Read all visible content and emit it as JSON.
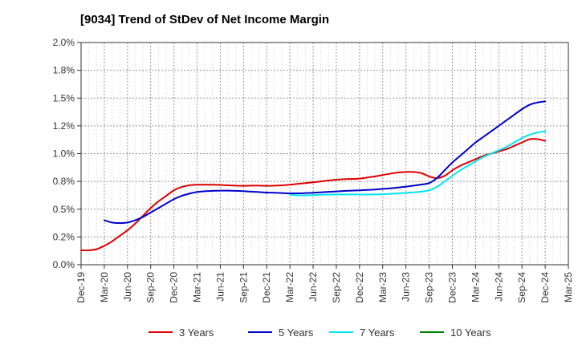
{
  "chart_data": {
    "type": "line",
    "title": "[9034]  Trend of StDev of Net Income Margin",
    "xlabel": "",
    "ylabel": "",
    "x_ticks": [
      "Dec-19",
      "Mar-20",
      "Jun-20",
      "Sep-20",
      "Dec-20",
      "Mar-21",
      "Jun-21",
      "Sep-21",
      "Dec-21",
      "Mar-22",
      "Jun-22",
      "Sep-22",
      "Dec-22",
      "Mar-23",
      "Jun-23",
      "Sep-23",
      "Dec-23",
      "Mar-24",
      "Jun-24",
      "Sep-24",
      "Dec-24",
      "Mar-25"
    ],
    "y_ticks": [
      "0.0%",
      "0.2%",
      "0.5%",
      "0.8%",
      "1.0%",
      "1.2%",
      "1.5%",
      "1.8%",
      "2.0%"
    ],
    "ylim": [
      0,
      2.0
    ],
    "grid": true,
    "legend_position": "bottom",
    "series": [
      {
        "name": "3 Years",
        "color": "#dd0000",
        "x": [
          "Dec-19",
          "Jan-20",
          "Feb-20",
          "Mar-20",
          "Apr-20",
          "May-20",
          "Jun-20",
          "Jul-20",
          "Aug-20",
          "Sep-20",
          "Oct-20",
          "Nov-20",
          "Dec-20",
          "Jan-21",
          "Feb-21",
          "Mar-21",
          "Apr-21",
          "May-21",
          "Jun-21",
          "Jul-21",
          "Aug-21",
          "Sep-21",
          "Oct-21",
          "Nov-21",
          "Dec-21",
          "Jan-22",
          "Feb-22",
          "Mar-22",
          "Apr-22",
          "May-22",
          "Jun-22",
          "Jul-22",
          "Aug-22",
          "Sep-22",
          "Oct-22",
          "Nov-22",
          "Dec-22",
          "Jan-23",
          "Feb-23",
          "Mar-23",
          "Apr-23",
          "May-23",
          "Jun-23",
          "Jul-23",
          "Aug-23",
          "Sep-23",
          "Oct-23",
          "Nov-23",
          "Dec-23",
          "Jan-24",
          "Feb-24",
          "Mar-24",
          "Apr-24",
          "May-24",
          "Jun-24",
          "Jul-24",
          "Aug-24",
          "Sep-24",
          "Oct-24",
          "Nov-24",
          "Dec-24"
        ],
        "values": [
          0.13,
          0.13,
          0.14,
          0.17,
          0.21,
          0.26,
          0.31,
          0.37,
          0.44,
          0.51,
          0.57,
          0.62,
          0.67,
          0.7,
          0.715,
          0.72,
          0.72,
          0.72,
          0.718,
          0.715,
          0.712,
          0.71,
          0.712,
          0.712,
          0.71,
          0.712,
          0.715,
          0.72,
          0.728,
          0.735,
          0.742,
          0.75,
          0.758,
          0.765,
          0.77,
          0.772,
          0.775,
          0.785,
          0.795,
          0.808,
          0.82,
          0.83,
          0.835,
          0.835,
          0.825,
          0.795,
          0.78,
          0.8,
          0.85,
          0.89,
          0.92,
          0.95,
          0.98,
          1.0,
          1.02,
          1.04,
          1.07,
          1.1,
          1.13,
          1.13,
          1.115
        ]
      },
      {
        "name": "5 Years",
        "color": "#0000cc",
        "x": [
          "Mar-20",
          "Apr-20",
          "May-20",
          "Jun-20",
          "Jul-20",
          "Aug-20",
          "Sep-20",
          "Oct-20",
          "Nov-20",
          "Dec-20",
          "Jan-21",
          "Feb-21",
          "Mar-21",
          "Apr-21",
          "May-21",
          "Jun-21",
          "Jul-21",
          "Aug-21",
          "Sep-21",
          "Oct-21",
          "Nov-21",
          "Dec-21",
          "Jan-22",
          "Feb-22",
          "Mar-22",
          "Apr-22",
          "May-22",
          "Jun-22",
          "Jul-22",
          "Aug-22",
          "Sep-22",
          "Oct-22",
          "Nov-22",
          "Dec-22",
          "Jan-23",
          "Feb-23",
          "Mar-23",
          "Apr-23",
          "May-23",
          "Jun-23",
          "Jul-23",
          "Aug-23",
          "Sep-23",
          "Oct-23",
          "Nov-23",
          "Dec-23",
          "Jan-24",
          "Feb-24",
          "Mar-24",
          "Apr-24",
          "May-24",
          "Jun-24",
          "Jul-24",
          "Aug-24",
          "Sep-24",
          "Oct-24",
          "Nov-24",
          "Dec-24"
        ],
        "values": [
          0.4,
          0.38,
          0.375,
          0.38,
          0.4,
          0.43,
          0.47,
          0.51,
          0.55,
          0.59,
          0.62,
          0.64,
          0.655,
          0.662,
          0.665,
          0.667,
          0.667,
          0.665,
          0.662,
          0.658,
          0.654,
          0.65,
          0.648,
          0.645,
          0.643,
          0.643,
          0.645,
          0.648,
          0.652,
          0.656,
          0.66,
          0.664,
          0.667,
          0.67,
          0.673,
          0.677,
          0.682,
          0.688,
          0.695,
          0.703,
          0.712,
          0.722,
          0.735,
          0.78,
          0.85,
          0.92,
          0.98,
          1.04,
          1.1,
          1.15,
          1.2,
          1.25,
          1.3,
          1.35,
          1.4,
          1.44,
          1.46,
          1.47
        ]
      },
      {
        "name": "7 Years",
        "color": "#00e5ee",
        "x": [
          "Mar-22",
          "Apr-22",
          "May-22",
          "Jun-22",
          "Jul-22",
          "Aug-22",
          "Sep-22",
          "Oct-22",
          "Nov-22",
          "Dec-22",
          "Jan-23",
          "Feb-23",
          "Mar-23",
          "Apr-23",
          "May-23",
          "Jun-23",
          "Jul-23",
          "Aug-23",
          "Sep-23",
          "Oct-23",
          "Nov-23",
          "Dec-23",
          "Jan-24",
          "Feb-24",
          "Mar-24",
          "Apr-24",
          "May-24",
          "Jun-24",
          "Jul-24",
          "Aug-24",
          "Sep-24",
          "Oct-24",
          "Nov-24",
          "Dec-24"
        ],
        "values": [
          0.63,
          0.625,
          0.625,
          0.627,
          0.63,
          0.632,
          0.633,
          0.633,
          0.633,
          0.632,
          0.632,
          0.633,
          0.635,
          0.638,
          0.642,
          0.647,
          0.652,
          0.658,
          0.67,
          0.7,
          0.75,
          0.8,
          0.85,
          0.89,
          0.93,
          0.97,
          1.0,
          1.03,
          1.06,
          1.1,
          1.14,
          1.17,
          1.19,
          1.2
        ]
      },
      {
        "name": "10 Years",
        "color": "#008000",
        "x": [],
        "values": []
      }
    ]
  }
}
